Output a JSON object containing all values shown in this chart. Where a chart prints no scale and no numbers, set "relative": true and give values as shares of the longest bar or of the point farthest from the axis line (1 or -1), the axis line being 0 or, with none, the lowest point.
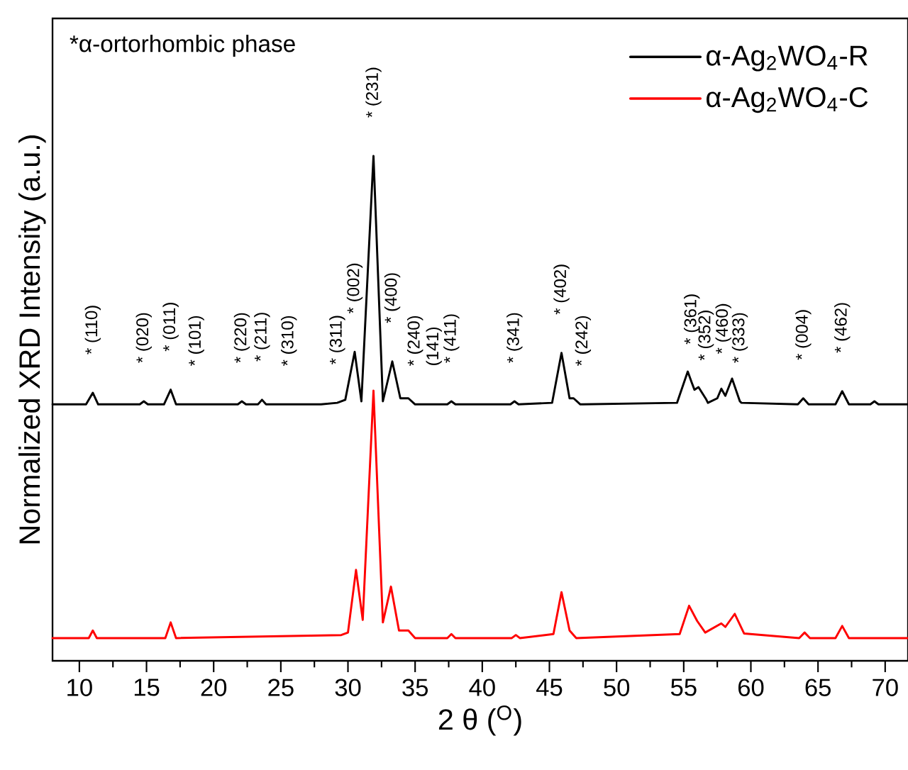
{
  "chart_data": {
    "type": "line",
    "relative": true,
    "xlabel": "2 θ ($^{O}$)",
    "ylabel": "Normalized XRD Intensity (a.u.)",
    "xlim": [
      8,
      71.7
    ],
    "xticks": [
      10,
      {
        "value": 12.5,
        "label": null
      },
      15,
      {
        "value": 17.5,
        "label": null
      },
      20,
      {
        "value": 22.5,
        "label": null
      },
      25,
      {
        "value": 27.5,
        "label": null
      },
      30,
      {
        "value": 32.5,
        "label": null
      },
      35,
      {
        "value": 37.5,
        "label": null
      },
      40,
      {
        "value": 42.5,
        "label": null
      },
      45,
      {
        "value": 47.5,
        "label": null
      },
      50,
      {
        "value": 52.5,
        "label": null
      },
      55,
      {
        "value": 57.5,
        "label": null
      },
      60,
      {
        "value": 62.5,
        "label": null
      },
      65,
      {
        "value": 67.5,
        "label": null
      },
      70
    ],
    "legend": "top right",
    "grid": false,
    "marker": "none",
    "line_style": "solid",
    "series": [
      {
        "name": "α-Ag$_{2}$WO$_{4}$-R",
        "color": "#000000",
        "x": [
          8.0,
          10.5,
          11.0,
          11.4,
          14.5,
          14.8,
          15.1,
          16.3,
          16.8,
          17.2,
          18.7,
          21.8,
          22.1,
          22.4,
          23.3,
          23.6,
          23.9,
          25.6,
          28.0,
          29.2,
          29.8,
          30.5,
          31.0,
          31.9,
          32.6,
          33.3,
          33.9,
          34.5,
          35.0,
          36.4,
          37.4,
          37.7,
          38.0,
          42.1,
          42.4,
          42.7,
          45.2,
          45.9,
          46.5,
          46.8,
          47.3,
          47.5,
          54.5,
          55.3,
          55.6,
          55.8,
          56.1,
          56.65,
          56.8,
          57.5,
          57.8,
          57.95,
          58.1,
          58.6,
          59.18,
          59.3,
          63.5,
          63.9,
          64.3,
          66.3,
          66.8,
          67.3,
          68.9,
          69.2,
          69.5,
          71.7
        ],
        "values": [
          0.508,
          0.508,
          0.531,
          0.508,
          0.508,
          0.514,
          0.508,
          0.508,
          0.537,
          0.508,
          0.508,
          0.508,
          0.514,
          0.508,
          0.508,
          0.517,
          0.508,
          0.508,
          0.508,
          0.511,
          0.517,
          0.612,
          0.514,
          1.0,
          0.514,
          0.593,
          0.52,
          0.52,
          0.508,
          0.508,
          0.508,
          0.514,
          0.508,
          0.508,
          0.514,
          0.508,
          0.511,
          0.61,
          0.52,
          0.52,
          0.508,
          0.508,
          0.511,
          0.573,
          0.551,
          0.537,
          0.542,
          0.519,
          0.511,
          0.52,
          0.539,
          0.532,
          0.525,
          0.559,
          0.514,
          0.511,
          0.508,
          0.52,
          0.508,
          0.508,
          0.534,
          0.508,
          0.508,
          0.514,
          0.508,
          0.508
        ]
      },
      {
        "name": "α-Ag$_{2}$WO$_{4}$-C",
        "color": "#ff0000",
        "x": [
          8.0,
          10.7,
          11.0,
          11.3,
          16.4,
          16.8,
          17.2,
          29.5,
          30.0,
          30.6,
          31.1,
          31.9,
          32.6,
          33.2,
          33.8,
          34.5,
          35.0,
          37.4,
          37.7,
          38.0,
          42.2,
          42.5,
          42.8,
          45.3,
          45.9,
          46.5,
          47.0,
          54.7,
          55.4,
          56.0,
          56.6,
          57.8,
          58.1,
          58.8,
          59.5,
          63.6,
          64.0,
          64.4,
          66.3,
          66.8,
          67.3,
          71.7
        ],
        "values": [
          0.045,
          0.045,
          0.06,
          0.045,
          0.045,
          0.076,
          0.045,
          0.051,
          0.056,
          0.18,
          0.081,
          0.535,
          0.076,
          0.147,
          0.06,
          0.06,
          0.045,
          0.045,
          0.053,
          0.045,
          0.045,
          0.051,
          0.045,
          0.053,
          0.136,
          0.06,
          0.045,
          0.053,
          0.109,
          0.079,
          0.056,
          0.074,
          0.067,
          0.093,
          0.054,
          0.045,
          0.056,
          0.045,
          0.045,
          0.069,
          0.045,
          0.045
        ]
      }
    ],
    "annotations": [
      "*α-ortorhombic phase",
      {
        "text": "* (110)",
        "x": 11.0,
        "y": 0.531
      },
      {
        "text": "* (020)",
        "x": 14.8,
        "y": 0.514
      },
      {
        "text": "* (011)",
        "x": 16.8,
        "y": 0.537
      },
      {
        "text": "* (101)",
        "x": 18.7,
        "y": 0.508
      },
      {
        "text": "* (220)",
        "x": 22.1,
        "y": 0.514
      },
      {
        "text": "* (211)",
        "x": 23.6,
        "y": 0.517
      },
      {
        "text": "* (310)",
        "x": 25.6,
        "y": 0.508
      },
      {
        "text": "* (311)",
        "x": 29.2,
        "y": 0.511
      },
      {
        "text": "* (002)",
        "x": 30.5,
        "y": 0.612
      },
      {
        "text": "* (231)",
        "x": 31.9,
        "y": 1.0
      },
      {
        "text": "* (400)",
        "x": 33.3,
        "y": 0.593
      },
      {
        "text": "* (240)",
        "x": 35.0,
        "y": 0.508
      },
      {
        "text": "(141)",
        "x": 36.4,
        "y": 0.508
      },
      {
        "text": "* (411)",
        "x": 37.7,
        "y": 0.514
      },
      {
        "text": "* (341)",
        "x": 42.4,
        "y": 0.514
      },
      {
        "text": "* (402)",
        "x": 45.9,
        "y": 0.61
      },
      {
        "text": "* (242)",
        "x": 47.5,
        "y": 0.508
      },
      {
        "text": "* (361)",
        "x": 55.6,
        "y": 0.551
      },
      {
        "text": "* (352)",
        "x": 56.65,
        "y": 0.519
      },
      {
        "text": "* (460)",
        "x": 57.95,
        "y": 0.532
      },
      {
        "text": "* (333)",
        "x": 59.18,
        "y": 0.514
      },
      {
        "text": "* (004)",
        "x": 63.9,
        "y": 0.52
      },
      {
        "text": "* (462)",
        "x": 66.8,
        "y": 0.534
      }
    ]
  }
}
